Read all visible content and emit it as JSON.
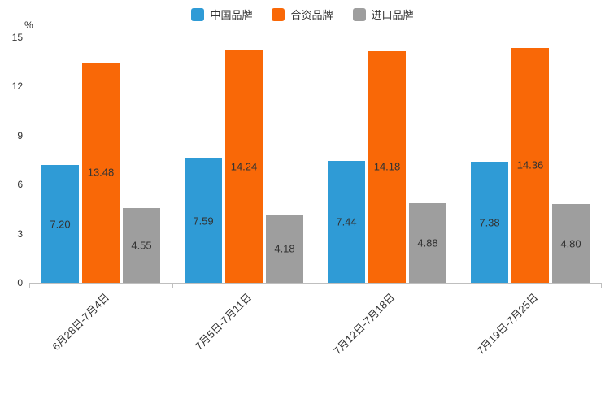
{
  "chart_data": {
    "type": "bar",
    "title": "",
    "unit": "%",
    "categories": [
      "6月28日-7月4日",
      "7月5日-7月11日",
      "7月12日-7月18日",
      "7月19日-7月25日"
    ],
    "series": [
      {
        "name": "中国品牌",
        "color": "#2F9BD6",
        "values": [
          7.2,
          7.59,
          7.44,
          7.38
        ]
      },
      {
        "name": "合资品牌",
        "color": "#F96807",
        "values": [
          13.48,
          14.24,
          14.18,
          14.36
        ]
      },
      {
        "name": "进口品牌",
        "color": "#9E9E9E",
        "values": [
          4.55,
          4.18,
          4.88,
          4.8
        ]
      }
    ],
    "ylim": [
      0,
      15
    ],
    "yticks": [
      0,
      3,
      6,
      9,
      12,
      15
    ],
    "value_label_format": "2-decimals",
    "legend_position": "top",
    "grid": false,
    "colors": {
      "axis": "#BFBFBF",
      "text": "#333333"
    }
  }
}
